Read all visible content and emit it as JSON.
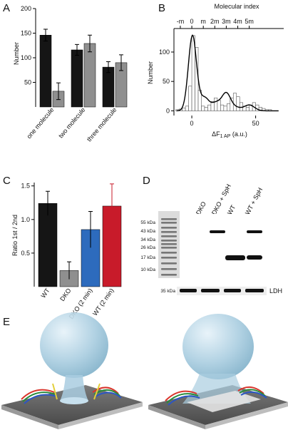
{
  "panels": {
    "A": "A",
    "B": "B",
    "C": "C",
    "D": "D",
    "E": "E"
  },
  "chart_data": [
    {
      "id": "A",
      "type": "bar",
      "ylabel": "Number",
      "ylim": [
        0,
        200
      ],
      "yticks": [
        50,
        100,
        150,
        200
      ],
      "categories": [
        "one molecule",
        "two molecule",
        "three molecule"
      ],
      "bar_colors": [
        "#151515",
        "#8f8f8f"
      ],
      "values": [
        [
          146,
          32
        ],
        [
          116,
          129
        ],
        [
          81,
          90
        ]
      ],
      "errors": [
        [
          12,
          17
        ],
        [
          11,
          17
        ],
        [
          11,
          16
        ]
      ]
    },
    {
      "id": "B",
      "type": "bar",
      "ylabel": "Number",
      "xlabel": "ΔF",
      "xlabel_sub": "1 AP",
      "xlabel_unit": " (a.u.)",
      "top_label": "Molecular index",
      "xlim": [
        -14,
        72
      ],
      "ylim": [
        -8,
        140
      ],
      "yticks": [
        0,
        50,
        100
      ],
      "xticks": [
        0,
        50
      ],
      "top_ticks": [
        {
          "label": "-m",
          "x": -9
        },
        {
          "label": "0",
          "x": 0
        },
        {
          "label": "m",
          "x": 9
        },
        {
          "label": "2m",
          "x": 18
        },
        {
          "label": "3m",
          "x": 27
        },
        {
          "label": "4m",
          "x": 36
        },
        {
          "label": "5m",
          "x": 45
        }
      ],
      "bin_width": 2.5,
      "bin_start": -12.5,
      "histogram": [
        2,
        3,
        5,
        8,
        42,
        128,
        108,
        35,
        8,
        6,
        10,
        16,
        22,
        18,
        10,
        8,
        12,
        22,
        30,
        24,
        14,
        8,
        6,
        10,
        14,
        10,
        6,
        4,
        2,
        2
      ],
      "fit_peaks": [
        {
          "center": 0.5,
          "amp": 128,
          "sigma": 3.2
        },
        {
          "center": 10,
          "amp": 22,
          "sigma": 3.5
        },
        {
          "center": 19,
          "amp": 13,
          "sigma": 3.5
        },
        {
          "center": 27,
          "amp": 30,
          "sigma": 3.5
        },
        {
          "center": 35,
          "amp": 5,
          "sigma": 3.5
        },
        {
          "center": 45,
          "amp": 10,
          "sigma": 4
        }
      ]
    },
    {
      "id": "C",
      "type": "bar",
      "ylabel": "Ratio 1st / 2nd",
      "ylim": [
        0,
        1.55
      ],
      "yticks": [
        0.5,
        1.0,
        1.5
      ],
      "ytick_labels": [
        "0.5",
        "1.0",
        "1.5"
      ],
      "categories": [
        "WT",
        "DKO",
        "DKO (2 min)",
        "WT (2 min)"
      ],
      "values": [
        1.24,
        0.24,
        0.85,
        1.2
      ],
      "errors": [
        0.18,
        0.13,
        0.27,
        0.33
      ],
      "bar_colors": [
        "#151515",
        "#8f8f8f",
        "#2d6bbd",
        "#c81b2a"
      ]
    }
  ],
  "gel": {
    "lane_labels": [
      "DKO",
      "DKO + SpH",
      "WT",
      "WT + SpH"
    ],
    "markers": [
      "55 kDa",
      "43 kDa",
      "34 kDa",
      "26 kDa",
      "17 kDa",
      "10 kDa"
    ],
    "loading_label": "35 kDa",
    "loading_name": "LDH"
  }
}
